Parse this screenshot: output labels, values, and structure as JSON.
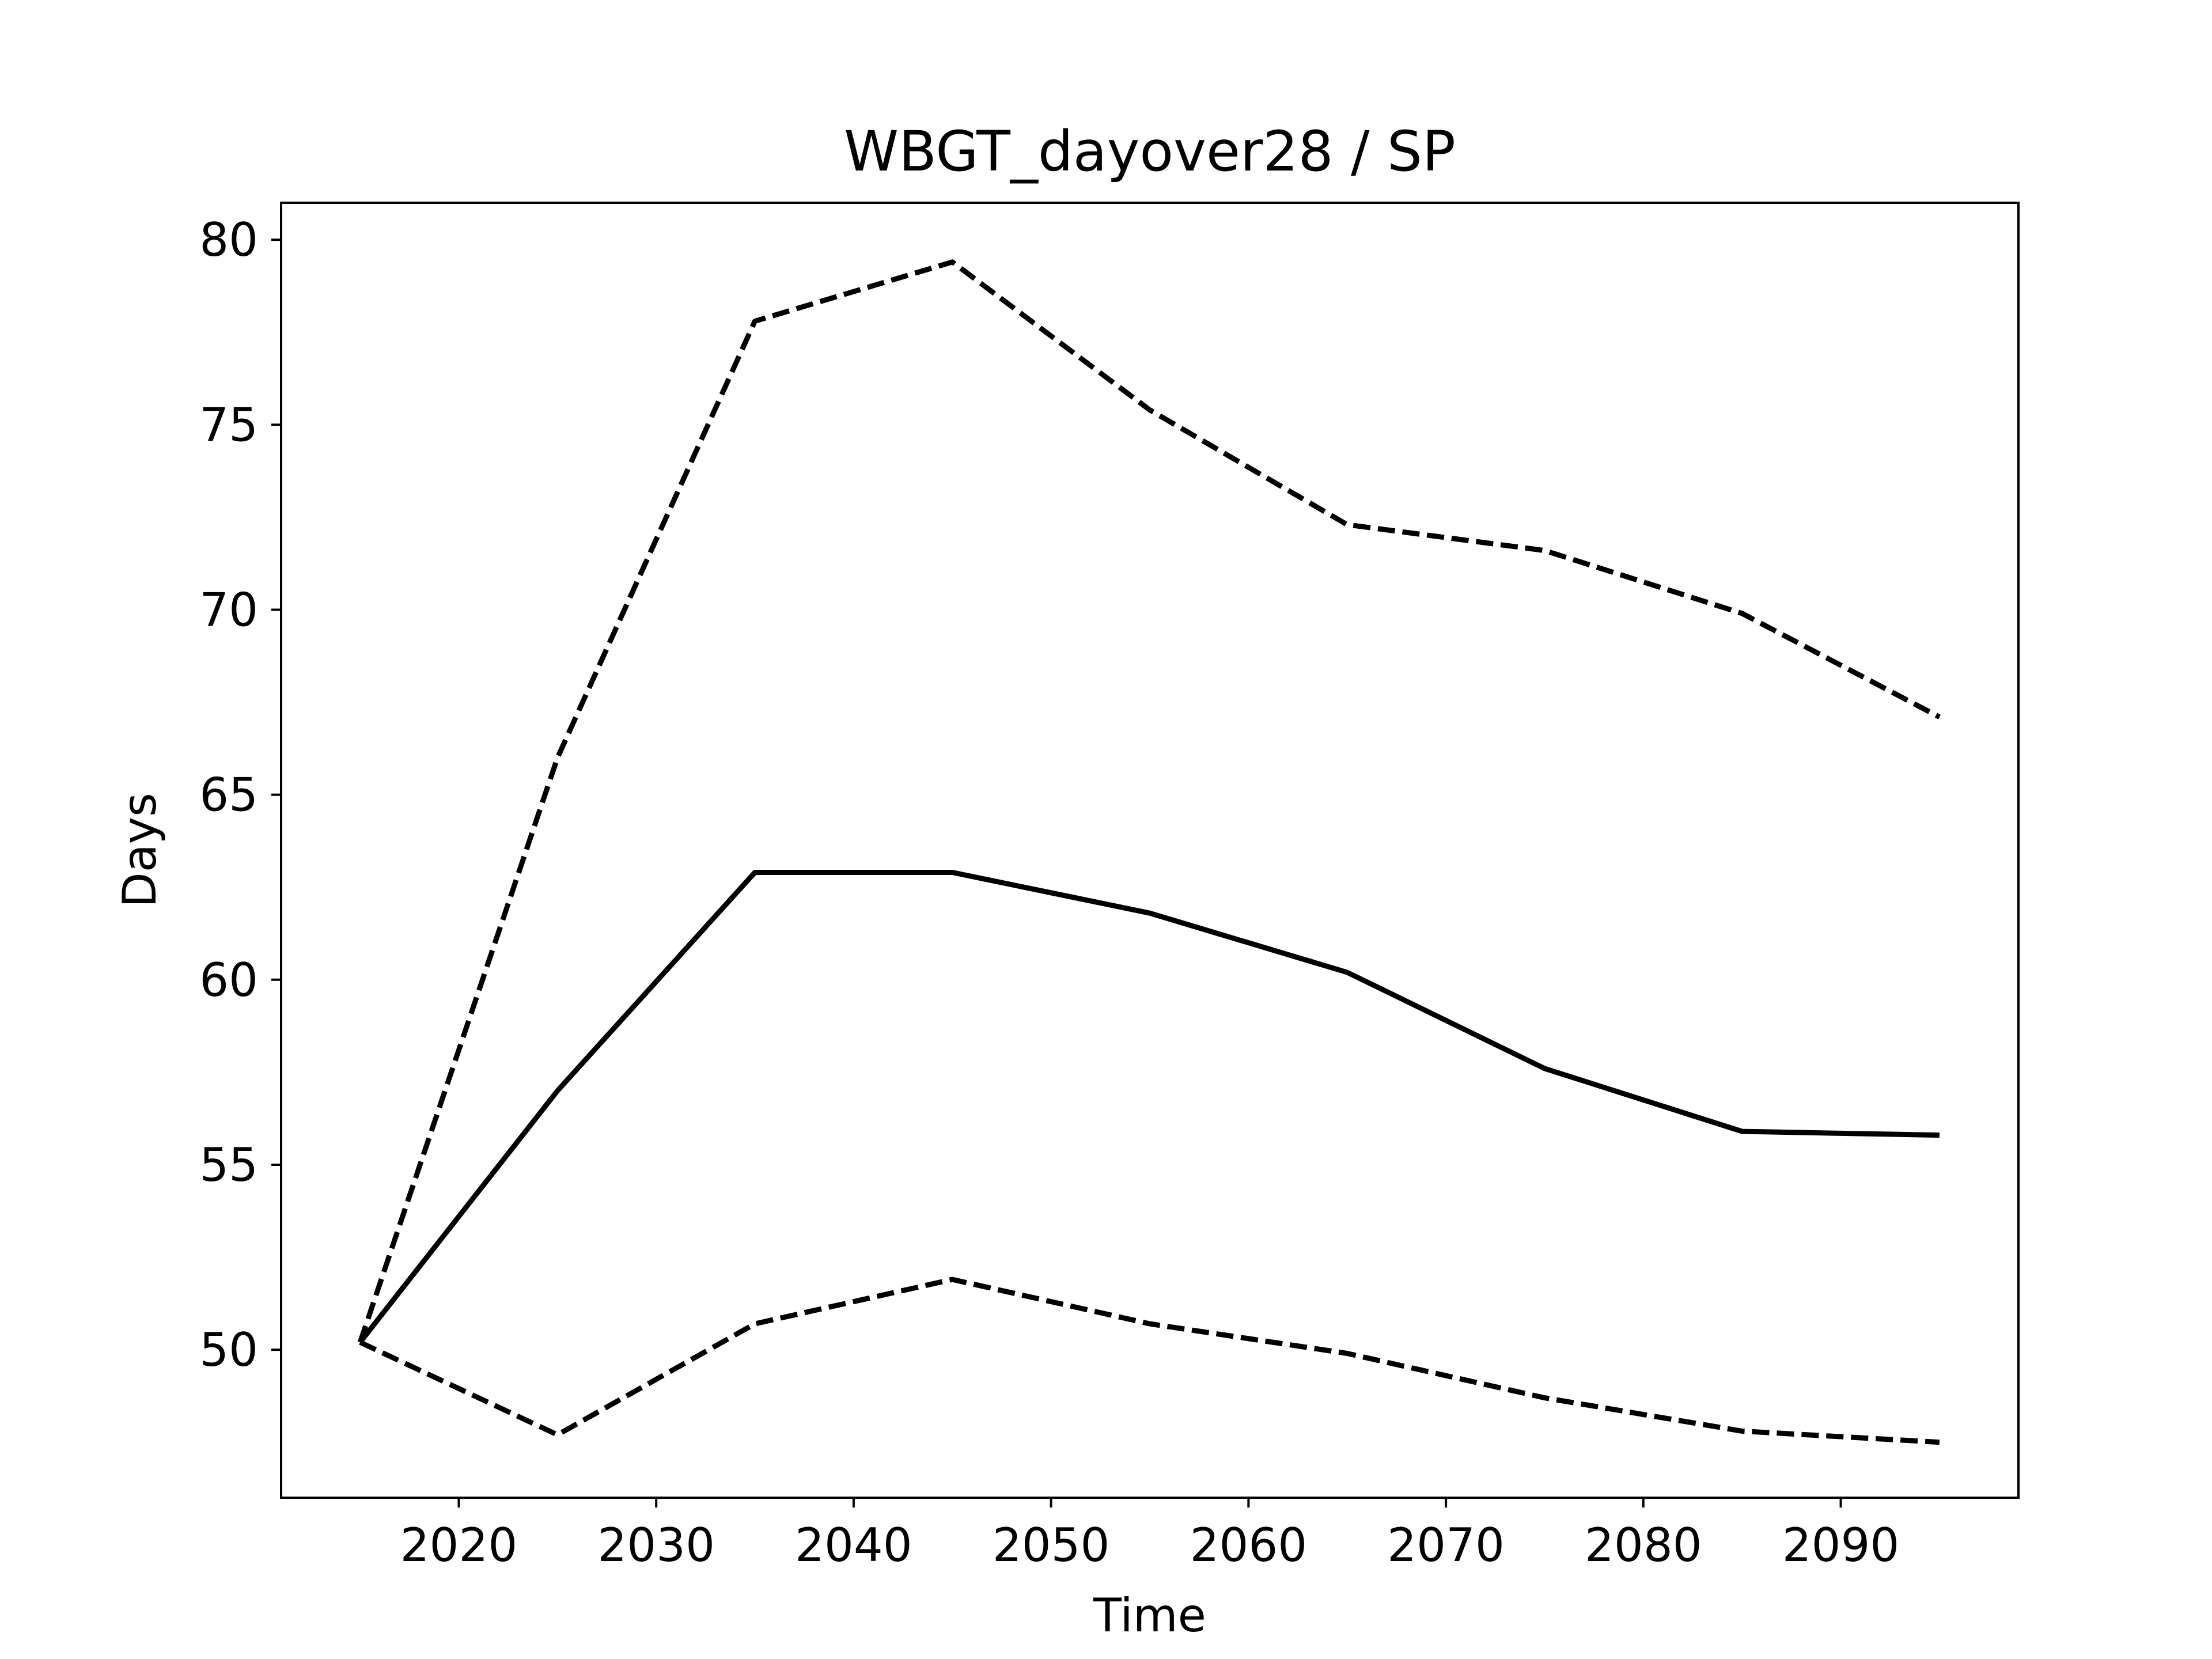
{
  "chart_data": {
    "type": "line",
    "title": "WBGT_dayover28 / SP",
    "xlabel": "Time",
    "ylabel": "Days",
    "xlim": [
      2011,
      2099
    ],
    "ylim": [
      46,
      81
    ],
    "x_ticks": [
      2020,
      2030,
      2040,
      2050,
      2060,
      2070,
      2080,
      2090
    ],
    "y_ticks": [
      50,
      55,
      60,
      65,
      70,
      75,
      80
    ],
    "grid": false,
    "legend": "none",
    "x": [
      2015,
      2025,
      2035,
      2045,
      2055,
      2065,
      2075,
      2085,
      2095
    ],
    "series": [
      {
        "style": "solid",
        "color": "#000000",
        "values": [
          50.2,
          57.0,
          62.9,
          62.9,
          61.8,
          60.2,
          57.6,
          55.9,
          55.8
        ]
      },
      {
        "style": "dashed",
        "color": "#000000",
        "values": [
          50.2,
          66.0,
          77.8,
          79.4,
          75.4,
          72.3,
          71.6,
          69.9,
          67.1
        ]
      },
      {
        "style": "dashed",
        "color": "#000000",
        "values": [
          50.2,
          47.7,
          50.7,
          51.9,
          50.7,
          49.9,
          48.7,
          47.8,
          47.5
        ]
      }
    ]
  }
}
